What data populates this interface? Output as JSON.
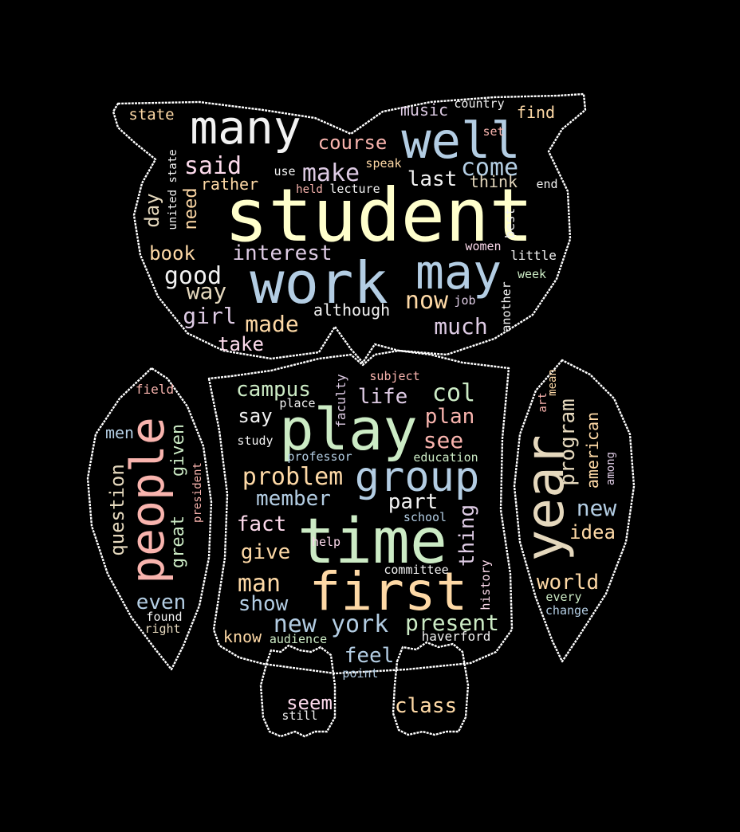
{
  "palette": {
    "background": "#000000",
    "outline": "#ffffff",
    "pink": "#f9b4ae",
    "blue": "#b3cde3",
    "green": "#ccebc5",
    "lilac": "#decbe4",
    "peach": "#fed9a6",
    "cream": "#ffffcc",
    "tan": "#e5d8bd",
    "rose": "#fddaec",
    "grey": "#f2f2f2"
  },
  "words": [
    "student",
    "work",
    "may",
    "many",
    "well",
    "time",
    "first",
    "play",
    "group",
    "year",
    "people",
    "course",
    "said",
    "make",
    "come",
    "last",
    "think",
    "end",
    "music",
    "country",
    "find",
    "set",
    "state",
    "use",
    "speak",
    "rather",
    "held",
    "lecture",
    "united state",
    "day",
    "need",
    "best",
    "book",
    "interest",
    "women",
    "little",
    "good",
    "week",
    "way",
    "now",
    "job",
    "girl",
    "made",
    "although",
    "much",
    "another",
    "take",
    "campus",
    "subject",
    "life",
    "col",
    "field",
    "place",
    "faculty",
    "say",
    "plan",
    "men",
    "study",
    "see",
    "professor",
    "education",
    "problem",
    "member",
    "part",
    "question",
    "given",
    "president",
    "great",
    "school",
    "thing",
    "fact",
    "give",
    "help",
    "man",
    "committee",
    "history",
    "even",
    "show",
    "new york",
    "present",
    "found",
    "right",
    "know",
    "audience",
    "haverford",
    "feel",
    "point",
    "seem",
    "still",
    "class",
    "mean",
    "art",
    "program",
    "american",
    "among",
    "new",
    "idea",
    "world",
    "every",
    "change"
  ]
}
